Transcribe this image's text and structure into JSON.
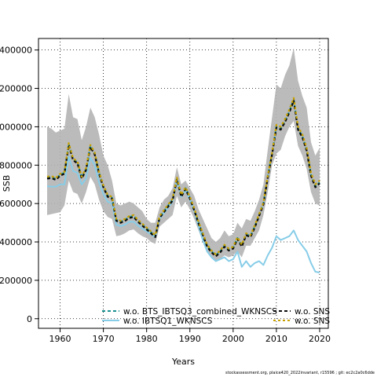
{
  "chart_data": {
    "type": "line",
    "title": "",
    "xlabel": "Years",
    "ylabel": "SSB",
    "xlim": [
      1955,
      2022
    ],
    "ylim": [
      -50000,
      1460000
    ],
    "xticks": [
      1960,
      1970,
      1980,
      1990,
      2000,
      2010,
      2020
    ],
    "yticks": [
      0,
      200000,
      400000,
      600000,
      800000,
      1000000,
      1200000,
      1400000
    ],
    "ytick_labels": [
      "0",
      "200000",
      "400000",
      "600000",
      "800000",
      "1000000",
      "1200000",
      "1400000"
    ],
    "grid": true,
    "legend_position": "bottom",
    "confidence_band": {
      "years": [
        1957,
        1958,
        1959,
        1960,
        1961,
        1962,
        1963,
        1964,
        1965,
        1966,
        1967,
        1968,
        1969,
        1970,
        1971,
        1972,
        1973,
        1974,
        1975,
        1976,
        1977,
        1978,
        1979,
        1980,
        1981,
        1982,
        1983,
        1984,
        1985,
        1986,
        1987,
        1988,
        1989,
        1990,
        1991,
        1992,
        1993,
        1994,
        1995,
        1996,
        1997,
        1998,
        1999,
        2000,
        2001,
        2002,
        2003,
        2004,
        2005,
        2006,
        2007,
        2008,
        2009,
        2010,
        2011,
        2012,
        2013,
        2014,
        2015,
        2016,
        2017,
        2018,
        2019,
        2020
      ],
      "lower": [
        540000,
        545000,
        550000,
        555000,
        590000,
        720000,
        660000,
        650000,
        600000,
        660000,
        740000,
        700000,
        620000,
        560000,
        530000,
        520000,
        430000,
        435000,
        445000,
        460000,
        465000,
        445000,
        430000,
        420000,
        400000,
        390000,
        480000,
        500000,
        520000,
        540000,
        640000,
        580000,
        610000,
        570000,
        520000,
        460000,
        400000,
        350000,
        320000,
        300000,
        310000,
        330000,
        320000,
        330000,
        350000,
        320000,
        380000,
        380000,
        420000,
        460000,
        540000,
        660000,
        800000,
        860000,
        880000,
        950000,
        1000000,
        1030000,
        900000,
        850000,
        780000,
        660000,
        600000,
        590000
      ],
      "upper": [
        1000000,
        990000,
        970000,
        980000,
        990000,
        1170000,
        1050000,
        1040000,
        930000,
        1000000,
        1100000,
        1050000,
        960000,
        850000,
        800000,
        720000,
        600000,
        590000,
        600000,
        610000,
        600000,
        580000,
        560000,
        520000,
        500000,
        500000,
        580000,
        620000,
        640000,
        680000,
        790000,
        700000,
        720000,
        680000,
        640000,
        570000,
        520000,
        470000,
        420000,
        400000,
        420000,
        460000,
        430000,
        440000,
        500000,
        470000,
        520000,
        510000,
        560000,
        620000,
        700000,
        880000,
        1050000,
        1220000,
        1200000,
        1270000,
        1320000,
        1410000,
        1240000,
        1160000,
        1100000,
        920000,
        850000,
        890000
      ]
    },
    "series": [
      {
        "name": "w.o. BTS_IBTSQ3_combined_WKNSCS",
        "color": "#1a9090",
        "dash": "4,3",
        "x": [
          1957,
          1958,
          1959,
          1960,
          1961,
          1962,
          1963,
          1964,
          1965,
          1966,
          1967,
          1968,
          1969,
          1970,
          1971,
          1972,
          1973,
          1974,
          1975,
          1976,
          1977,
          1978,
          1979,
          1980,
          1981,
          1982,
          1983,
          1984,
          1985,
          1986,
          1987,
          1988,
          1989,
          1990,
          1991,
          1992,
          1993,
          1994,
          1995,
          1996,
          1997,
          1998,
          1999,
          2000,
          2001,
          2002,
          2003,
          2004,
          2005,
          2006,
          2007,
          2008,
          2009,
          2010,
          2011,
          2012,
          2013,
          2014,
          2015,
          2016,
          2017,
          2018,
          2019,
          2020
        ],
        "y": [
          735000,
          738000,
          728000,
          750000,
          760000,
          910000,
          830000,
          815000,
          735000,
          780000,
          900000,
          860000,
          760000,
          690000,
          640000,
          630000,
          515000,
          505000,
          515000,
          530000,
          535000,
          510000,
          490000,
          470000,
          450000,
          430000,
          530000,
          560000,
          590000,
          620000,
          730000,
          640000,
          680000,
          630000,
          570000,
          500000,
          440000,
          380000,
          350000,
          330000,
          350000,
          380000,
          360000,
          370000,
          420000,
          380000,
          440000,
          430000,
          480000,
          540000,
          600000,
          740000,
          860000,
          1000000,
          990000,
          1030000,
          1080000,
          1140000,
          990000,
          950000,
          880000,
          750000,
          690000,
          710000
        ]
      },
      {
        "name": "w.o. IBTSQ1_WKNSCS",
        "color": "#87cde8",
        "dash": "",
        "x": [
          1957,
          1958,
          1959,
          1960,
          1961,
          1962,
          1963,
          1964,
          1965,
          1966,
          1967,
          1968,
          1969,
          1970,
          1971,
          1972,
          1973,
          1974,
          1975,
          1976,
          1977,
          1978,
          1979,
          1980,
          1981,
          1982,
          1983,
          1984,
          1985,
          1986,
          1987,
          1988,
          1989,
          1990,
          1991,
          1992,
          1993,
          1994,
          1995,
          1996,
          1997,
          1998,
          1999,
          2000,
          2001,
          2002,
          2003,
          2004,
          2005,
          2006,
          2007,
          2008,
          2009,
          2010,
          2011,
          2012,
          2013,
          2014,
          2015,
          2016,
          2017,
          2018,
          2019,
          2020
        ],
        "y": [
          690000,
          688000,
          688000,
          700000,
          700000,
          845000,
          770000,
          760000,
          700000,
          730000,
          840000,
          800000,
          710000,
          650000,
          610000,
          600000,
          490000,
          482000,
          490000,
          505000,
          505000,
          485000,
          470000,
          455000,
          440000,
          425000,
          520000,
          550000,
          580000,
          610000,
          720000,
          635000,
          670000,
          620000,
          560000,
          480000,
          410000,
          350000,
          320000,
          300000,
          310000,
          320000,
          300000,
          310000,
          350000,
          270000,
          300000,
          270000,
          290000,
          300000,
          280000,
          330000,
          370000,
          430000,
          410000,
          420000,
          430000,
          460000,
          410000,
          380000,
          350000,
          290000,
          245000,
          240000
        ]
      },
      {
        "name": "w.o. SNS",
        "color": "#0a0a0a",
        "dash": "4,3",
        "x": [
          1957,
          1958,
          1959,
          1960,
          1961,
          1962,
          1963,
          1964,
          1965,
          1966,
          1967,
          1968,
          1969,
          1970,
          1971,
          1972,
          1973,
          1974,
          1975,
          1976,
          1977,
          1978,
          1979,
          1980,
          1981,
          1982,
          1983,
          1984,
          1985,
          1986,
          1987,
          1988,
          1989,
          1990,
          1991,
          1992,
          1993,
          1994,
          1995,
          1996,
          1997,
          1998,
          1999,
          2000,
          2001,
          2002,
          2003,
          2004,
          2005,
          2006,
          2007,
          2008,
          2009,
          2010,
          2011,
          2012,
          2013,
          2014,
          2015,
          2016,
          2017,
          2018,
          2019,
          2020
        ],
        "y": [
          730000,
          733000,
          723000,
          745000,
          755000,
          905000,
          825000,
          810000,
          730000,
          775000,
          895000,
          855000,
          755000,
          685000,
          635000,
          625000,
          510000,
          500000,
          510000,
          525000,
          530000,
          505000,
          485000,
          465000,
          445000,
          425000,
          525000,
          555000,
          585000,
          615000,
          725000,
          635000,
          675000,
          625000,
          565000,
          495000,
          435000,
          375000,
          345000,
          325000,
          345000,
          375000,
          355000,
          365000,
          415000,
          375000,
          435000,
          425000,
          475000,
          535000,
          595000,
          735000,
          855000,
          995000,
          985000,
          1025000,
          1075000,
          1135000,
          985000,
          945000,
          875000,
          745000,
          685000,
          705000
        ]
      },
      {
        "name": "w.o. SNS",
        "color": "#c8a000",
        "dash": "3,3",
        "x": [
          1957,
          1958,
          1959,
          1960,
          1961,
          1962,
          1963,
          1964,
          1965,
          1966,
          1967,
          1968,
          1969,
          1970,
          1971,
          1972,
          1973,
          1974,
          1975,
          1976,
          1977,
          1978,
          1979,
          1980,
          1981,
          1982,
          1983,
          1984,
          1985,
          1986,
          1987,
          1988,
          1989,
          1990,
          1991,
          1992,
          1993,
          1994,
          1995,
          1996,
          1997,
          1998,
          1999,
          2000,
          2001,
          2002,
          2003,
          2004,
          2005,
          2006,
          2007,
          2008,
          2009,
          2010,
          2011,
          2012,
          2013,
          2014,
          2015,
          2016,
          2017,
          2018,
          2019,
          2020
        ],
        "y": [
          740000,
          743000,
          733000,
          755000,
          765000,
          915000,
          835000,
          820000,
          740000,
          785000,
          905000,
          865000,
          765000,
          695000,
          645000,
          635000,
          520000,
          510000,
          520000,
          535000,
          540000,
          515000,
          495000,
          475000,
          455000,
          435000,
          535000,
          565000,
          595000,
          625000,
          735000,
          645000,
          685000,
          635000,
          575000,
          505000,
          445000,
          385000,
          355000,
          335000,
          355000,
          385000,
          365000,
          375000,
          425000,
          385000,
          445000,
          435000,
          485000,
          545000,
          605000,
          745000,
          865000,
          1010000,
          1000000,
          1040000,
          1090000,
          1150000,
          1000000,
          960000,
          890000,
          760000,
          700000,
          720000
        ]
      }
    ],
    "footer": "stockassessment.org, plaice420_2022invariant, r15596 ; git: ec2c2a0c6dde"
  }
}
